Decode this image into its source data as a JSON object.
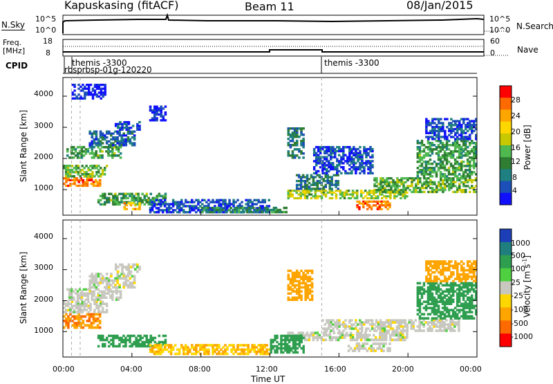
{
  "header": {
    "title": "Kapuskasing (fitACF)",
    "beam": "Beam 11",
    "date": "08/Jan/2015"
  },
  "summary_panel": {
    "left_label": "N.Sky",
    "left_ticks": [
      "10^5",
      "10^0"
    ],
    "right_ticks": [
      "10^5",
      "10^0"
    ],
    "right_label": "N.Search"
  },
  "freq_panel": {
    "left_label_line1": "Freq.",
    "left_label_line2": "[MHz]",
    "left_ticks": [
      "18",
      "8"
    ],
    "right_ticks": [
      "60",
      "0"
    ],
    "right_label": "Nave"
  },
  "cpid": {
    "label": "CPID",
    "markers": [
      {
        "text": "themis -3300",
        "time_h": 0.9
      },
      {
        "text": "rbsprbsp-01g-120220",
        "time_h": 0.1
      },
      {
        "text": "themis -3300",
        "time_h": 15.0
      }
    ]
  },
  "chart_data": [
    {
      "type": "heatmap",
      "name": "power_panel",
      "ylabel": "Slant Range [km]",
      "yticks": [
        1000,
        2000,
        3000,
        4000
      ],
      "ylim": [
        180,
        4600
      ],
      "colorbar": {
        "label": "Power [dB]",
        "ticks": [
          "28",
          "24",
          "20",
          "16",
          "12",
          "8",
          "4"
        ],
        "colors": [
          "#ff0000",
          "#ff6a00",
          "#ffa500",
          "#ffd700",
          "#c8c800",
          "#4fb84f",
          "#2e7d32",
          "#1e8080",
          "#1c4fb8",
          "#1010ff"
        ]
      },
      "regions": [
        {
          "t0": 0.0,
          "t1": 2.2,
          "r0": 1100,
          "r1": 1400,
          "level": 28
        },
        {
          "t0": 0.0,
          "t1": 2.6,
          "r0": 1400,
          "r1": 1800,
          "level": 16
        },
        {
          "t0": 0.2,
          "t1": 3.4,
          "r0": 2000,
          "r1": 2400,
          "level": 14
        },
        {
          "t0": 1.5,
          "t1": 4.2,
          "r0": 2400,
          "r1": 2900,
          "level": 8
        },
        {
          "t0": 3.0,
          "t1": 4.5,
          "r0": 2900,
          "r1": 3200,
          "level": 6
        },
        {
          "t0": 5.0,
          "t1": 6.0,
          "r0": 3200,
          "r1": 3700,
          "level": 4
        },
        {
          "t0": 0.5,
          "t1": 2.5,
          "r0": 3900,
          "r1": 4400,
          "level": 4
        },
        {
          "t0": 2.0,
          "t1": 6.0,
          "r0": 500,
          "r1": 900,
          "level": 14
        },
        {
          "t0": 3.5,
          "t1": 4.5,
          "r0": 350,
          "r1": 600,
          "level": 24
        },
        {
          "t0": 5.0,
          "t1": 12.0,
          "r0": 250,
          "r1": 700,
          "level": 6
        },
        {
          "t0": 8.0,
          "t1": 13.0,
          "r0": 250,
          "r1": 450,
          "level": 12
        },
        {
          "t0": 13.0,
          "t1": 20.0,
          "r0": 700,
          "r1": 1000,
          "level": 18
        },
        {
          "t0": 13.5,
          "t1": 16.0,
          "r0": 1000,
          "r1": 1500,
          "level": 10
        },
        {
          "t0": 14.5,
          "t1": 18.0,
          "r0": 1500,
          "r1": 2400,
          "level": 6
        },
        {
          "t0": 17.0,
          "t1": 19.0,
          "r0": 350,
          "r1": 650,
          "level": 28
        },
        {
          "t0": 18.0,
          "t1": 24.0,
          "r0": 900,
          "r1": 1400,
          "level": 16
        },
        {
          "t0": 20.5,
          "t1": 24.0,
          "r0": 1400,
          "r1": 2600,
          "level": 14
        },
        {
          "t0": 21.0,
          "t1": 24.0,
          "r0": 2600,
          "r1": 3300,
          "level": 6
        },
        {
          "t0": 13.0,
          "t1": 14.0,
          "r0": 2000,
          "r1": 3000,
          "level": 10
        }
      ]
    },
    {
      "type": "heatmap",
      "name": "velocity_panel",
      "ylabel": "Slant Range [km]",
      "yticks": [
        1000,
        2000,
        3000,
        4000
      ],
      "ylim": [
        180,
        4600
      ],
      "xlabel": "Time UT",
      "xticks": [
        "00:00",
        "04:00",
        "08:00",
        "12:00",
        "16:00",
        "20:00",
        "00:00"
      ],
      "xlim": [
        0,
        24
      ],
      "colorbar": {
        "label": "Velocity [m s",
        "label_sup": "-1",
        "label_end": "]",
        "ticks": [
          "1000",
          "500",
          "100",
          "25",
          "-25",
          "-100",
          "-500",
          "-1000"
        ],
        "colors": [
          "#1c3fb8",
          "#1f7f7f",
          "#2e9e4f",
          "#4fd040",
          "#c8c8c0",
          "#ffd700",
          "#ffa500",
          "#ff6a00",
          "#ff0000"
        ]
      },
      "regions": [
        {
          "t0": 0.0,
          "t1": 2.2,
          "r0": 1100,
          "r1": 1600,
          "level": -500
        },
        {
          "t0": 0.0,
          "t1": 2.6,
          "r0": 1600,
          "r1": 2000,
          "level": 0
        },
        {
          "t0": 0.2,
          "t1": 3.4,
          "r0": 2000,
          "r1": 2400,
          "level": 0
        },
        {
          "t0": 1.5,
          "t1": 4.2,
          "r0": 2400,
          "r1": 2900,
          "level": 0
        },
        {
          "t0": 3.0,
          "t1": 4.5,
          "r0": 2900,
          "r1": 3200,
          "level": 0
        },
        {
          "t0": 2.0,
          "t1": 6.0,
          "r0": 500,
          "r1": 900,
          "level": 200
        },
        {
          "t0": 5.0,
          "t1": 12.0,
          "r0": 250,
          "r1": 600,
          "level": -100
        },
        {
          "t0": 13.0,
          "t1": 20.0,
          "r0": 700,
          "r1": 1000,
          "level": 0
        },
        {
          "t0": 15.0,
          "t1": 23.0,
          "r0": 1000,
          "r1": 1400,
          "level": 0
        },
        {
          "t0": 16.5,
          "t1": 19.0,
          "r0": 350,
          "r1": 650,
          "level": 0
        },
        {
          "t0": 13.0,
          "t1": 14.5,
          "r0": 2000,
          "r1": 3000,
          "level": -300
        },
        {
          "t0": 20.5,
          "t1": 24.0,
          "r0": 1400,
          "r1": 2600,
          "level": 200
        },
        {
          "t0": 21.0,
          "t1": 24.0,
          "r0": 2600,
          "r1": 3300,
          "level": -300
        },
        {
          "t0": 12.0,
          "t1": 14.0,
          "r0": 300,
          "r1": 900,
          "level": 300
        }
      ]
    }
  ]
}
